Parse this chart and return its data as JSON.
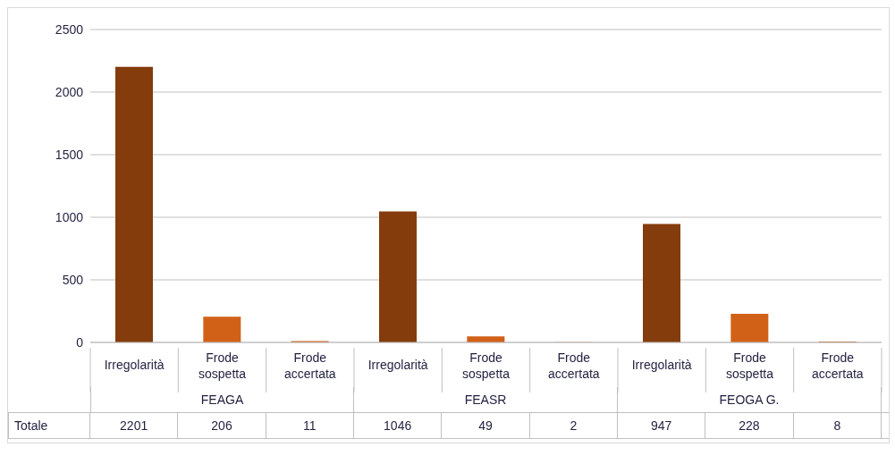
{
  "chart_data": {
    "type": "bar",
    "categories": [
      "Irregolarità",
      "Frode sospetta",
      "Frode accertata",
      "Irregolarità",
      "Frode sospetta",
      "Frode accertata",
      "Irregolarità",
      "Frode sospetta",
      "Frode accertata"
    ],
    "values": [
      2201,
      206,
      11,
      1046,
      49,
      2,
      947,
      228,
      8
    ],
    "colors": [
      "#843c0c",
      "#d26118",
      "#d26118",
      "#843c0c",
      "#d26118",
      "#d26118",
      "#843c0c",
      "#d26118",
      "#d26118"
    ],
    "ylim": [
      0,
      2500
    ],
    "yticks": [
      0,
      500,
      1000,
      1500,
      2000,
      2500
    ],
    "grid": "y",
    "data_labels": true,
    "annotations": [
      "Totale",
      "FEAGA",
      "FEASR",
      "FEOGA G."
    ]
  }
}
